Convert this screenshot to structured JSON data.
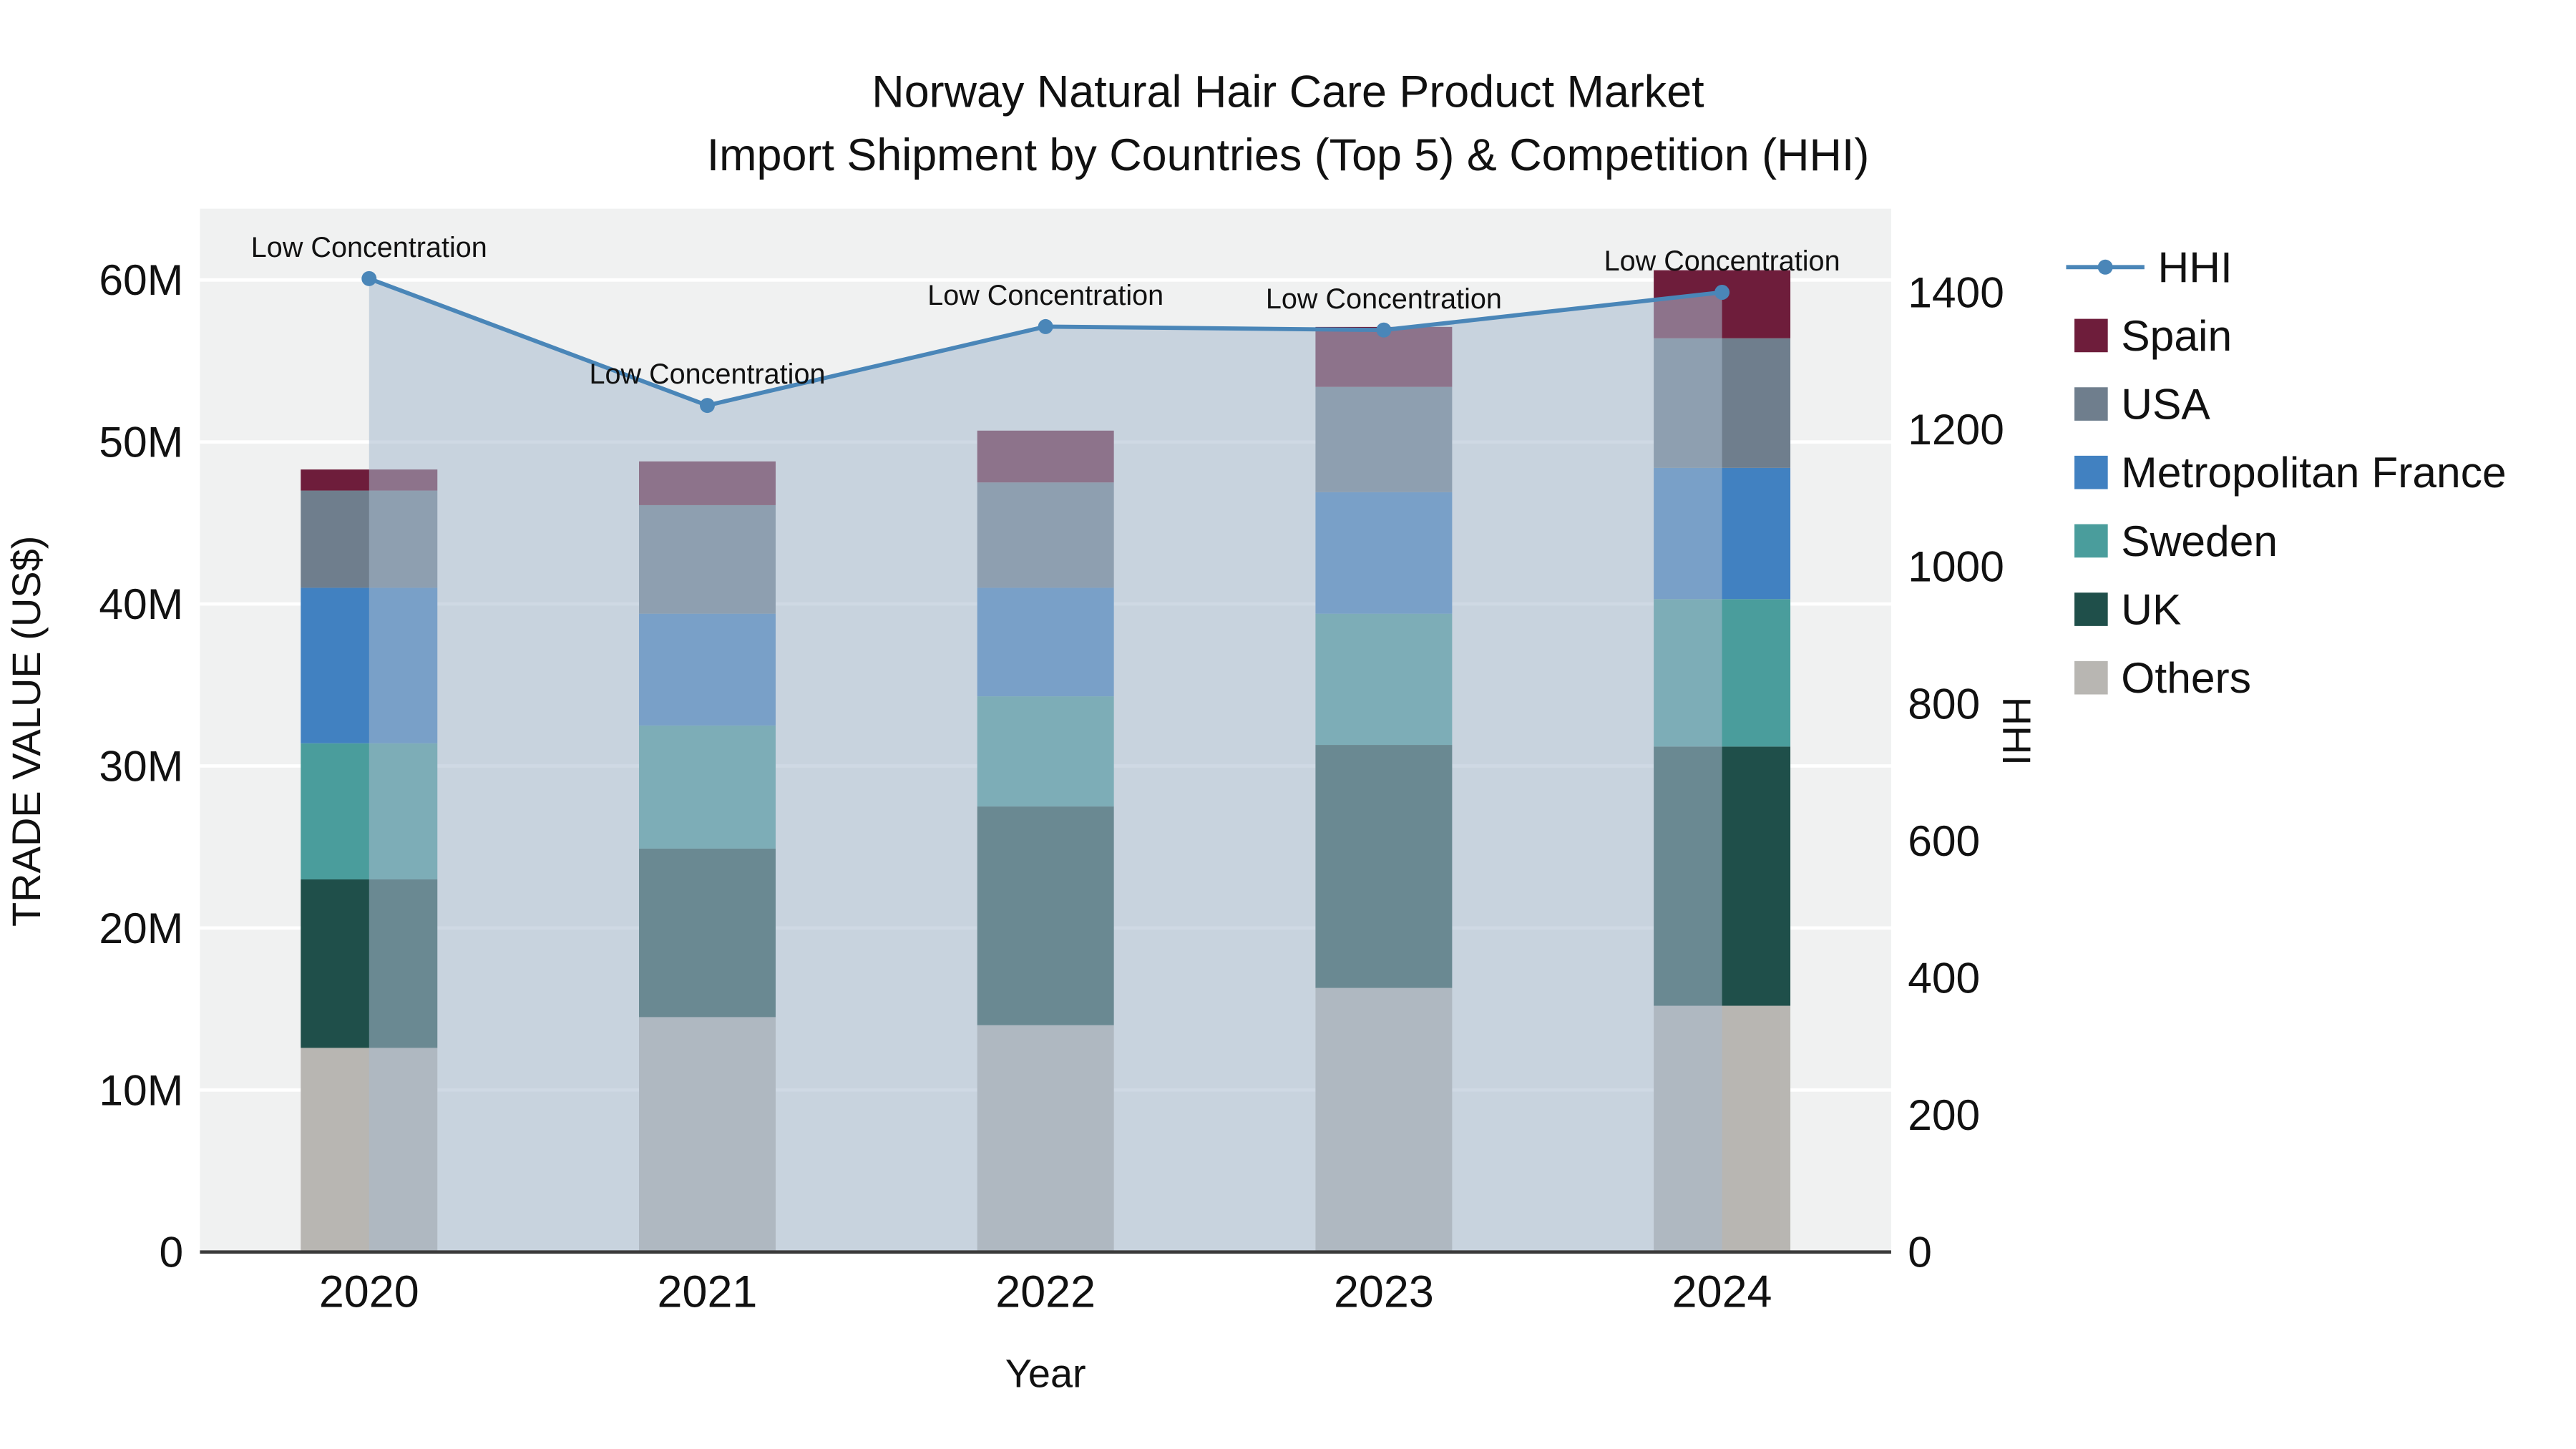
{
  "chart_data": {
    "type": "bar",
    "subtype": "stacked-bar-with-line",
    "title": "Norway Natural Hair Care Product Market",
    "subtitle": "Import Shipment by Countries (Top 5) & Competition (HHI)",
    "xlabel": "Year",
    "ylabel_left": "TRADE VALUE (US$)",
    "ylabel_right": "HHI",
    "categories": [
      "2020",
      "2021",
      "2022",
      "2023",
      "2024"
    ],
    "stack_order_bottom_to_top": [
      "Others",
      "UK",
      "Sweden",
      "Metropolitan France",
      "USA",
      "Spain"
    ],
    "series": [
      {
        "name": "Spain",
        "color": "#6e1d3b",
        "values_musd": [
          1.3,
          2.7,
          3.2,
          3.7,
          4.2
        ]
      },
      {
        "name": "USA",
        "color": "#6f7e8d",
        "values_musd": [
          6.0,
          6.7,
          6.5,
          6.5,
          8.0
        ]
      },
      {
        "name": "Metropolitan France",
        "color": "#4181c1",
        "values_musd": [
          9.6,
          6.9,
          6.7,
          7.5,
          8.1
        ]
      },
      {
        "name": "Sweden",
        "color": "#4a9d9c",
        "values_musd": [
          8.4,
          7.6,
          6.8,
          8.1,
          9.1
        ]
      },
      {
        "name": "UK",
        "color": "#1f4f4a",
        "values_musd": [
          10.4,
          10.4,
          13.5,
          15.0,
          16.0
        ]
      },
      {
        "name": "Others",
        "color": "#b8b6b2",
        "values_musd": [
          12.6,
          14.5,
          14.0,
          16.3,
          15.2
        ]
      }
    ],
    "line": {
      "name": "HHI",
      "color": "#4a86b8",
      "fill_color": "rgba(168,185,205,0.55)",
      "values": [
        1420,
        1235,
        1350,
        1345,
        1400
      ],
      "annotations": [
        "Low Concentration",
        "Low Concentration",
        "Low Concentration",
        "Low Concentration",
        "Low Concentration"
      ]
    },
    "axes": {
      "left": {
        "ticks": [
          "0",
          "10M",
          "20M",
          "30M",
          "40M",
          "50M",
          "60M"
        ],
        "tick_values_musd": [
          0,
          10,
          20,
          30,
          40,
          50,
          60
        ],
        "max_musd": 64.4
      },
      "right": {
        "ticks": [
          "0",
          "200",
          "400",
          "600",
          "800",
          "1000",
          "1200",
          "1400"
        ],
        "tick_values": [
          0,
          200,
          400,
          600,
          800,
          1000,
          1200,
          1400
        ],
        "max": 1522
      }
    },
    "legend": [
      "HHI",
      "Spain",
      "USA",
      "Metropolitan France",
      "Sweden",
      "UK",
      "Others"
    ],
    "layout": {
      "plot_bg": "#f0f1f1",
      "grid_color": "#ffffff",
      "axis_line_color": "#3a3a3a",
      "legend_position": "right-top",
      "grid": true
    }
  }
}
